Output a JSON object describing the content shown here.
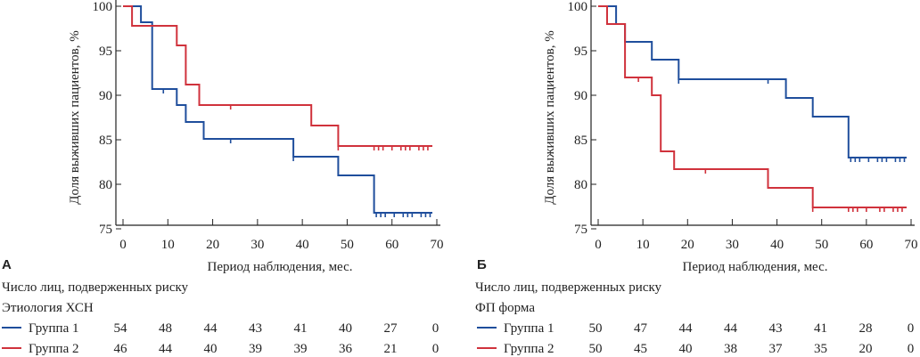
{
  "colors": {
    "group1": "#1f4e9c",
    "group2": "#d0323c",
    "axis": "#222222"
  },
  "chart_data": [
    {
      "type": "line",
      "subtype": "kaplan-meier-step",
      "panel": "А",
      "xlabel": "Период наблюдения, мес.",
      "ylabel": "Доля выживших пациентов, %",
      "xlim": [
        0,
        70
      ],
      "ylim": [
        75,
        100
      ],
      "xticks": [
        "0",
        "10",
        "20",
        "30",
        "40",
        "50",
        "60",
        "70"
      ],
      "yticks": [
        "75",
        "80",
        "85",
        "90",
        "95",
        "100"
      ],
      "grid": false,
      "series": [
        {
          "name": "Группа 1",
          "color": "#1f4e9c",
          "steps": [
            [
              0,
              100
            ],
            [
              4,
              100
            ],
            [
              4,
              98.2
            ],
            [
              6.5,
              98.2
            ],
            [
              6.5,
              90.7
            ],
            [
              12,
              90.7
            ],
            [
              12,
              88.9
            ],
            [
              14,
              88.9
            ],
            [
              14,
              87.0
            ],
            [
              18,
              87.0
            ],
            [
              18,
              85.1
            ],
            [
              38,
              85.1
            ],
            [
              38,
              83.1
            ],
            [
              48,
              83.1
            ],
            [
              48,
              81.0
            ],
            [
              56,
              81.0
            ],
            [
              56,
              76.8
            ],
            [
              69,
              76.8
            ]
          ],
          "censored": [
            [
              9,
              90.7
            ],
            [
              24,
              85.1
            ],
            [
              38,
              83.1
            ],
            [
              56.5,
              76.8
            ],
            [
              57.5,
              76.8
            ],
            [
              58.5,
              76.8
            ],
            [
              60.5,
              76.8
            ],
            [
              62.5,
              76.8
            ],
            [
              63.5,
              76.8
            ],
            [
              64.5,
              76.8
            ],
            [
              66.5,
              76.8
            ],
            [
              67.5,
              76.8
            ],
            [
              68.5,
              76.8
            ]
          ]
        },
        {
          "name": "Группа 2",
          "color": "#d0323c",
          "steps": [
            [
              0,
              100
            ],
            [
              2,
              100
            ],
            [
              2,
              97.8
            ],
            [
              12,
              97.8
            ],
            [
              12,
              95.6
            ],
            [
              14,
              95.6
            ],
            [
              14,
              91.2
            ],
            [
              17,
              91.2
            ],
            [
              17,
              88.9
            ],
            [
              42,
              88.9
            ],
            [
              42,
              86.6
            ],
            [
              48,
              86.6
            ],
            [
              48,
              84.3
            ],
            [
              69,
              84.3
            ]
          ],
          "censored": [
            [
              24,
              88.9
            ],
            [
              48,
              84.3
            ],
            [
              56,
              84.3
            ],
            [
              57,
              84.3
            ],
            [
              58,
              84.3
            ],
            [
              60,
              84.3
            ],
            [
              62,
              84.3
            ],
            [
              63,
              84.3
            ],
            [
              64,
              84.3
            ],
            [
              66,
              84.3
            ],
            [
              67,
              84.3
            ],
            [
              68,
              84.3
            ]
          ]
        }
      ],
      "risk_table": {
        "title": "Число лиц, подверженных риску",
        "subtitle": "Этиология ХСН",
        "rows": [
          {
            "label": "Группа 1",
            "values": [
              "54",
              "48",
              "44",
              "43",
              "41",
              "40",
              "27",
              "0"
            ]
          },
          {
            "label": "Группа 2",
            "values": [
              "46",
              "44",
              "40",
              "39",
              "39",
              "36",
              "21",
              "0"
            ]
          }
        ]
      }
    },
    {
      "type": "line",
      "subtype": "kaplan-meier-step",
      "panel": "Б",
      "xlabel": "Период наблюдения, мес.",
      "ylabel": "Доля выживших пациентов, %",
      "xlim": [
        0,
        70
      ],
      "ylim": [
        75,
        100
      ],
      "xticks": [
        "0",
        "10",
        "20",
        "30",
        "40",
        "50",
        "60",
        "70"
      ],
      "yticks": [
        "75",
        "80",
        "85",
        "90",
        "95",
        "100"
      ],
      "grid": false,
      "series": [
        {
          "name": "Группа 1",
          "color": "#1f4e9c",
          "steps": [
            [
              0,
              100
            ],
            [
              4,
              100
            ],
            [
              4,
              98.0
            ],
            [
              6,
              98.0
            ],
            [
              6,
              96.0
            ],
            [
              12,
              96.0
            ],
            [
              12,
              94.0
            ],
            [
              18,
              94.0
            ],
            [
              18,
              91.8
            ],
            [
              42,
              91.8
            ],
            [
              42,
              89.7
            ],
            [
              48,
              89.7
            ],
            [
              48,
              87.6
            ],
            [
              56,
              87.6
            ],
            [
              56,
              83.0
            ],
            [
              69,
              83.0
            ]
          ],
          "censored": [
            [
              18,
              91.8
            ],
            [
              38,
              91.8
            ],
            [
              56.5,
              83.0
            ],
            [
              57.5,
              83.0
            ],
            [
              58.5,
              83.0
            ],
            [
              60.5,
              83.0
            ],
            [
              62.5,
              83.0
            ],
            [
              63.5,
              83.0
            ],
            [
              64.5,
              83.0
            ],
            [
              66.5,
              83.0
            ],
            [
              67.5,
              83.0
            ],
            [
              68.5,
              83.0
            ]
          ]
        },
        {
          "name": "Группа 2",
          "color": "#d0323c",
          "steps": [
            [
              0,
              100
            ],
            [
              2,
              100
            ],
            [
              2,
              98.0
            ],
            [
              6,
              98.0
            ],
            [
              6,
              92.0
            ],
            [
              12,
              92.0
            ],
            [
              12,
              90.0
            ],
            [
              14,
              90.0
            ],
            [
              14,
              83.7
            ],
            [
              17,
              83.7
            ],
            [
              17,
              81.7
            ],
            [
              38,
              81.7
            ],
            [
              38,
              79.6
            ],
            [
              48,
              79.6
            ],
            [
              48,
              77.4
            ],
            [
              69,
              77.4
            ]
          ],
          "censored": [
            [
              9,
              92.0
            ],
            [
              24,
              81.7
            ],
            [
              48,
              77.4
            ],
            [
              56,
              77.4
            ],
            [
              57,
              77.4
            ],
            [
              58,
              77.4
            ],
            [
              60,
              77.4
            ],
            [
              63,
              77.4
            ],
            [
              64,
              77.4
            ],
            [
              66,
              77.4
            ],
            [
              67,
              77.4
            ],
            [
              68,
              77.4
            ]
          ]
        }
      ],
      "risk_table": {
        "title": "Число лиц, подверженных риску",
        "subtitle": "ФП форма",
        "rows": [
          {
            "label": "Группа 1",
            "values": [
              "50",
              "47",
              "44",
              "44",
              "43",
              "41",
              "28",
              "0"
            ]
          },
          {
            "label": "Группа 2",
            "values": [
              "50",
              "45",
              "40",
              "38",
              "37",
              "35",
              "20",
              "0"
            ]
          }
        ]
      }
    }
  ]
}
